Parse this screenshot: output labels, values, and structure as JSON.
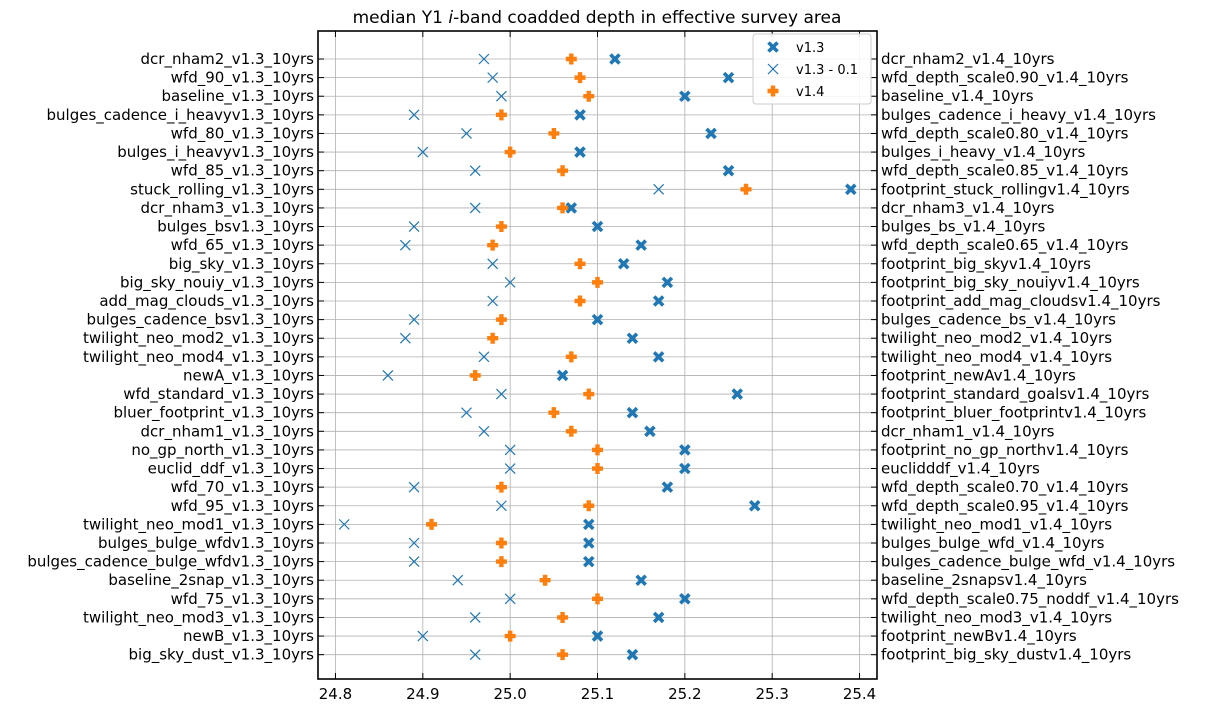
{
  "chart_data": {
    "type": "scatter",
    "title_prefix": "median Y1 ",
    "title_italic": "i",
    "title_suffix": "-band coadded depth in effective survey area",
    "xlim": [
      24.78,
      25.42
    ],
    "xticks": [
      24.8,
      24.9,
      25.0,
      25.1,
      25.2,
      25.3,
      25.4
    ],
    "grid": true,
    "legend_position": "top-right",
    "categories_left": [
      "dcr_nham2_v1.3_10yrs",
      "wfd_90_v1.3_10yrs",
      "baseline_v1.3_10yrs",
      "bulges_cadence_i_heavyv1.3_10yrs",
      "wfd_80_v1.3_10yrs",
      "bulges_i_heavyv1.3_10yrs",
      "wfd_85_v1.3_10yrs",
      "stuck_rolling_v1.3_10yrs",
      "dcr_nham3_v1.3_10yrs",
      "bulges_bsv1.3_10yrs",
      "wfd_65_v1.3_10yrs",
      "big_sky_v1.3_10yrs",
      "big_sky_nouiy_v1.3_10yrs",
      "add_mag_clouds_v1.3_10yrs",
      "bulges_cadence_bsv1.3_10yrs",
      "twilight_neo_mod2_v1.3_10yrs",
      "twilight_neo_mod4_v1.3_10yrs",
      "newA_v1.3_10yrs",
      "wfd_standard_v1.3_10yrs",
      "bluer_footprint_v1.3_10yrs",
      "dcr_nham1_v1.3_10yrs",
      "no_gp_north_v1.3_10yrs",
      "euclid_ddf_v1.3_10yrs",
      "wfd_70_v1.3_10yrs",
      "wfd_95_v1.3_10yrs",
      "twilight_neo_mod1_v1.3_10yrs",
      "bulges_bulge_wfdv1.3_10yrs",
      "bulges_cadence_bulge_wfdv1.3_10yrs",
      "baseline_2snap_v1.3_10yrs",
      "wfd_75_v1.3_10yrs",
      "twilight_neo_mod3_v1.3_10yrs",
      "newB_v1.3_10yrs",
      "big_sky_dust_v1.3_10yrs"
    ],
    "categories_right": [
      "dcr_nham2_v1.4_10yrs",
      "wfd_depth_scale0.90_v1.4_10yrs",
      "baseline_v1.4_10yrs",
      "bulges_cadence_i_heavy_v1.4_10yrs",
      "wfd_depth_scale0.80_v1.4_10yrs",
      "bulges_i_heavy_v1.4_10yrs",
      "wfd_depth_scale0.85_v1.4_10yrs",
      "footprint_stuck_rollingv1.4_10yrs",
      "dcr_nham3_v1.4_10yrs",
      "bulges_bs_v1.4_10yrs",
      "wfd_depth_scale0.65_v1.4_10yrs",
      "footprint_big_skyv1.4_10yrs",
      "footprint_big_sky_nouiyv1.4_10yrs",
      "footprint_add_mag_cloudsv1.4_10yrs",
      "bulges_cadence_bs_v1.4_10yrs",
      "twilight_neo_mod2_v1.4_10yrs",
      "twilight_neo_mod4_v1.4_10yrs",
      "footprint_newAv1.4_10yrs",
      "footprint_standard_goalsv1.4_10yrs",
      "footprint_bluer_footprintv1.4_10yrs",
      "dcr_nham1_v1.4_10yrs",
      "footprint_no_gp_northv1.4_10yrs",
      "euclidddf_v1.4_10yrs",
      "wfd_depth_scale0.70_v1.4_10yrs",
      "wfd_depth_scale0.95_v1.4_10yrs",
      "twilight_neo_mod1_v1.4_10yrs",
      "bulges_bulge_wfd_v1.4_10yrs",
      "bulges_cadence_bulge_wfd_v1.4_10yrs",
      "baseline_2snapsv1.4_10yrs",
      "wfd_depth_scale0.75_noddf_v1.4_10yrs",
      "twilight_neo_mod3_v1.4_10yrs",
      "footprint_newBv1.4_10yrs",
      "footprint_big_sky_dustv1.4_10yrs"
    ],
    "series": [
      {
        "name": "v1.3",
        "marker": "x-filled",
        "color": "#1f77b4",
        "values": [
          25.12,
          25.25,
          25.2,
          25.08,
          25.23,
          25.08,
          25.25,
          25.39,
          25.07,
          25.1,
          25.15,
          25.13,
          25.18,
          25.17,
          25.1,
          25.14,
          25.17,
          25.06,
          25.26,
          25.14,
          25.16,
          25.2,
          25.2,
          25.18,
          25.28,
          25.09,
          25.09,
          25.09,
          25.15,
          25.2,
          25.17,
          25.1,
          25.14
        ]
      },
      {
        "name": "v1.3 - 0.1",
        "marker": "x-thin",
        "color": "#1f77b4",
        "values": [
          24.97,
          24.98,
          24.99,
          24.89,
          24.95,
          24.9,
          24.96,
          25.17,
          24.96,
          24.89,
          24.88,
          24.98,
          25.0,
          24.98,
          24.89,
          24.88,
          24.97,
          24.86,
          24.99,
          24.95,
          24.97,
          25.0,
          25.0,
          24.89,
          24.99,
          24.81,
          24.89,
          24.89,
          24.94,
          25.0,
          24.96,
          24.9,
          24.96
        ]
      },
      {
        "name": "v1.4",
        "marker": "plus-filled",
        "color": "#ff7f0e",
        "values": [
          25.07,
          25.08,
          25.09,
          24.99,
          25.05,
          25.0,
          25.06,
          25.27,
          25.06,
          24.99,
          24.98,
          25.08,
          25.1,
          25.08,
          24.99,
          24.98,
          25.07,
          24.96,
          25.09,
          25.05,
          25.07,
          25.1,
          25.1,
          24.99,
          25.09,
          24.91,
          24.99,
          24.99,
          25.04,
          25.1,
          25.06,
          25.0,
          25.06
        ]
      }
    ]
  }
}
